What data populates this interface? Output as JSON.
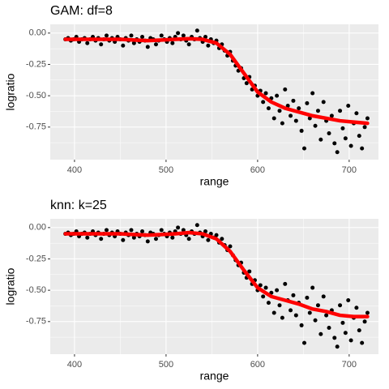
{
  "chart_data": [
    {
      "type": "scatter",
      "title": "GAM: df=8",
      "xlabel": "range",
      "ylabel": "logratio",
      "xlim": [
        373.5,
        732
      ],
      "ylim": [
        -1.01,
        0.07
      ],
      "xticks": [
        400,
        500,
        600,
        700
      ],
      "yticks": [
        {
          "value": 0,
          "label": "0.00"
        },
        {
          "value": -0.25,
          "label": "-0.25"
        },
        {
          "value": -0.5,
          "label": "-0.50"
        },
        {
          "value": -0.75,
          "label": "-0.75"
        }
      ],
      "x_minor_grid": [
        450,
        550,
        650
      ],
      "y_minor_grid": [
        -0.125,
        -0.375,
        -0.625,
        -0.875
      ],
      "grid": true,
      "points": {
        "color": "#000000",
        "x": [
          390,
          393,
          396,
          399,
          402,
          405,
          408,
          411,
          414,
          417,
          420,
          423,
          426,
          429,
          432,
          435,
          438,
          441,
          444,
          447,
          450,
          453,
          456,
          459,
          462,
          465,
          468,
          471,
          474,
          477,
          480,
          483,
          486,
          489,
          492,
          495,
          498,
          501,
          504,
          507,
          510,
          513,
          516,
          519,
          522,
          525,
          528,
          531,
          534,
          537,
          540,
          543,
          546,
          549,
          552,
          555,
          558,
          561,
          564,
          567,
          570,
          573,
          576,
          579,
          582,
          585,
          588,
          591,
          594,
          597,
          600,
          603,
          606,
          609,
          612,
          615,
          618,
          621,
          624,
          627,
          630,
          633,
          636,
          639,
          642,
          645,
          648,
          651,
          654,
          657,
          660,
          663,
          666,
          669,
          672,
          675,
          678,
          681,
          684,
          687,
          690,
          693,
          696,
          699,
          702,
          705,
          708,
          711,
          714,
          717,
          720
        ],
        "y": [
          -0.05,
          -0.04,
          -0.06,
          -0.05,
          -0.03,
          -0.07,
          -0.05,
          -0.04,
          -0.08,
          -0.05,
          -0.03,
          -0.06,
          -0.04,
          -0.09,
          -0.05,
          -0.02,
          -0.06,
          -0.04,
          -0.07,
          -0.03,
          -0.05,
          -0.1,
          -0.04,
          -0.06,
          -0.02,
          -0.08,
          -0.05,
          -0.07,
          -0.03,
          -0.06,
          -0.11,
          -0.04,
          -0.05,
          -0.09,
          -0.06,
          -0.02,
          -0.05,
          -0.07,
          -0.04,
          -0.08,
          -0.03,
          0,
          -0.05,
          -0.02,
          -0.06,
          -0.09,
          -0.03,
          -0.05,
          0.02,
          -0.04,
          -0.07,
          -0.03,
          -0.1,
          -0.05,
          -0.08,
          -0.06,
          -0.12,
          -0.09,
          -0.14,
          -0.18,
          -0.15,
          -0.22,
          -0.26,
          -0.3,
          -0.28,
          -0.36,
          -0.4,
          -0.35,
          -0.45,
          -0.42,
          -0.5,
          -0.46,
          -0.55,
          -0.48,
          -0.6,
          -0.52,
          -0.68,
          -0.5,
          -0.62,
          -0.72,
          -0.45,
          -0.58,
          -0.66,
          -0.54,
          -0.7,
          -0.6,
          -0.78,
          -0.92,
          -0.56,
          -0.68,
          -0.48,
          -0.74,
          -0.62,
          -0.85,
          -0.55,
          -0.7,
          -0.8,
          -0.66,
          -0.88,
          -0.95,
          -0.62,
          -0.76,
          -0.84,
          -0.58,
          -0.9,
          -0.72,
          -0.64,
          -0.82,
          -0.92,
          -0.75,
          -0.68
        ]
      },
      "fit": {
        "color": "#ff0000",
        "x": [
          390,
          405,
          420,
          435,
          450,
          465,
          480,
          495,
          510,
          525,
          540,
          555,
          570,
          585,
          600,
          615,
          630,
          645,
          660,
          675,
          690,
          705,
          720
        ],
        "y": [
          -0.05,
          -0.05,
          -0.05,
          -0.05,
          -0.05,
          -0.055,
          -0.06,
          -0.055,
          -0.05,
          -0.045,
          -0.05,
          -0.08,
          -0.17,
          -0.32,
          -0.47,
          -0.55,
          -0.6,
          -0.63,
          -0.66,
          -0.68,
          -0.7,
          -0.71,
          -0.72
        ]
      }
    },
    {
      "type": "scatter",
      "title": "knn: k=25",
      "xlabel": "range",
      "ylabel": "logratio",
      "xlim": [
        373.5,
        732
      ],
      "ylim": [
        -1.01,
        0.07
      ],
      "xticks": [
        400,
        500,
        600,
        700
      ],
      "yticks": [
        {
          "value": 0,
          "label": "0.00"
        },
        {
          "value": -0.25,
          "label": "-0.25"
        },
        {
          "value": -0.5,
          "label": "-0.50"
        },
        {
          "value": -0.75,
          "label": "-0.75"
        }
      ],
      "x_minor_grid": [
        450,
        550,
        650
      ],
      "y_minor_grid": [
        -0.125,
        -0.375,
        -0.625,
        -0.875
      ],
      "grid": true,
      "points": {
        "color": "#000000",
        "x": [
          390,
          393,
          396,
          399,
          402,
          405,
          408,
          411,
          414,
          417,
          420,
          423,
          426,
          429,
          432,
          435,
          438,
          441,
          444,
          447,
          450,
          453,
          456,
          459,
          462,
          465,
          468,
          471,
          474,
          477,
          480,
          483,
          486,
          489,
          492,
          495,
          498,
          501,
          504,
          507,
          510,
          513,
          516,
          519,
          522,
          525,
          528,
          531,
          534,
          537,
          540,
          543,
          546,
          549,
          552,
          555,
          558,
          561,
          564,
          567,
          570,
          573,
          576,
          579,
          582,
          585,
          588,
          591,
          594,
          597,
          600,
          603,
          606,
          609,
          612,
          615,
          618,
          621,
          624,
          627,
          630,
          633,
          636,
          639,
          642,
          645,
          648,
          651,
          654,
          657,
          660,
          663,
          666,
          669,
          672,
          675,
          678,
          681,
          684,
          687,
          690,
          693,
          696,
          699,
          702,
          705,
          708,
          711,
          714,
          717,
          720
        ],
        "y": [
          -0.05,
          -0.04,
          -0.06,
          -0.05,
          -0.03,
          -0.07,
          -0.05,
          -0.04,
          -0.08,
          -0.05,
          -0.03,
          -0.06,
          -0.04,
          -0.09,
          -0.05,
          -0.02,
          -0.06,
          -0.04,
          -0.07,
          -0.03,
          -0.05,
          -0.1,
          -0.04,
          -0.06,
          -0.02,
          -0.08,
          -0.05,
          -0.07,
          -0.03,
          -0.06,
          -0.11,
          -0.04,
          -0.05,
          -0.09,
          -0.06,
          -0.02,
          -0.05,
          -0.07,
          -0.04,
          -0.08,
          -0.03,
          0,
          -0.05,
          -0.02,
          -0.06,
          -0.09,
          -0.03,
          -0.05,
          0.02,
          -0.04,
          -0.07,
          -0.03,
          -0.1,
          -0.05,
          -0.08,
          -0.06,
          -0.12,
          -0.09,
          -0.14,
          -0.18,
          -0.15,
          -0.22,
          -0.26,
          -0.3,
          -0.28,
          -0.36,
          -0.4,
          -0.35,
          -0.45,
          -0.42,
          -0.5,
          -0.46,
          -0.55,
          -0.48,
          -0.6,
          -0.52,
          -0.68,
          -0.5,
          -0.62,
          -0.72,
          -0.45,
          -0.58,
          -0.66,
          -0.54,
          -0.7,
          -0.6,
          -0.78,
          -0.92,
          -0.56,
          -0.68,
          -0.48,
          -0.74,
          -0.62,
          -0.85,
          -0.55,
          -0.7,
          -0.8,
          -0.66,
          -0.88,
          -0.95,
          -0.62,
          -0.76,
          -0.84,
          -0.58,
          -0.9,
          -0.72,
          -0.64,
          -0.82,
          -0.92,
          -0.75,
          -0.68
        ]
      },
      "fit": {
        "color": "#ff0000",
        "x": [
          390,
          405,
          420,
          435,
          450,
          465,
          480,
          495,
          510,
          525,
          540,
          555,
          570,
          585,
          600,
          615,
          630,
          645,
          660,
          675,
          690,
          705,
          720
        ],
        "y": [
          -0.05,
          -0.05,
          -0.05,
          -0.05,
          -0.05,
          -0.055,
          -0.06,
          -0.055,
          -0.05,
          -0.04,
          -0.05,
          -0.09,
          -0.19,
          -0.34,
          -0.48,
          -0.55,
          -0.58,
          -0.61,
          -0.65,
          -0.67,
          -0.7,
          -0.71,
          -0.71
        ]
      }
    }
  ]
}
